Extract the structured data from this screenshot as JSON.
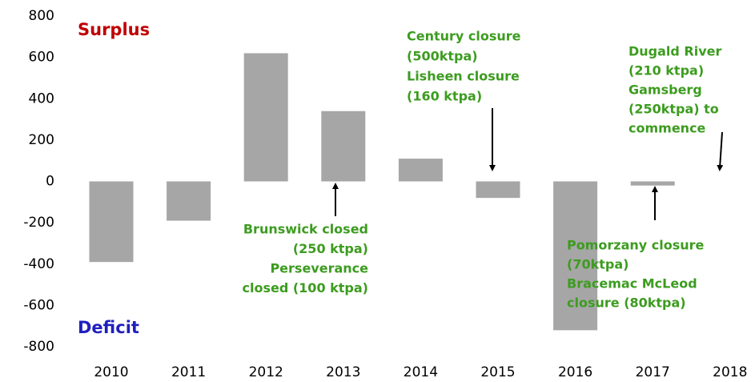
{
  "chart_data": {
    "type": "bar",
    "categories": [
      "2010",
      "2011",
      "2012",
      "2013",
      "2014",
      "2015",
      "2016",
      "2017",
      "2018"
    ],
    "values": [
      -390,
      -190,
      620,
      340,
      110,
      -80,
      -720,
      -20,
      0
    ],
    "color": "#a6a6a6",
    "ylim": [
      -800,
      800
    ],
    "yticks": [
      -800,
      -600,
      -400,
      -200,
      0,
      200,
      400,
      600,
      800
    ],
    "grid": false,
    "annotations": [
      {
        "text": "Surplus",
        "color": "#c00000"
      },
      {
        "text": "Deficit",
        "color": "#1f1fc0"
      },
      {
        "lines": [
          "Century closure",
          "(500ktpa)",
          "Lisheen closure",
          "(160 ktpa)"
        ],
        "color": "#3c9c1f"
      },
      {
        "lines": [
          "Dugald River",
          "(210 ktpa)",
          "Gamsberg",
          "(250ktpa) to",
          "commence"
        ],
        "color": "#3c9c1f"
      },
      {
        "lines": [
          "Brunswick closed",
          "(250 ktpa)",
          "Perseverance",
          "closed (100 ktpa)"
        ],
        "color": "#3c9c1f"
      },
      {
        "lines": [
          "Pomorzany closure",
          "(70ktpa)",
          "Bracemac McLeod",
          "closure (80ktpa)"
        ],
        "color": "#3c9c1f"
      }
    ]
  }
}
